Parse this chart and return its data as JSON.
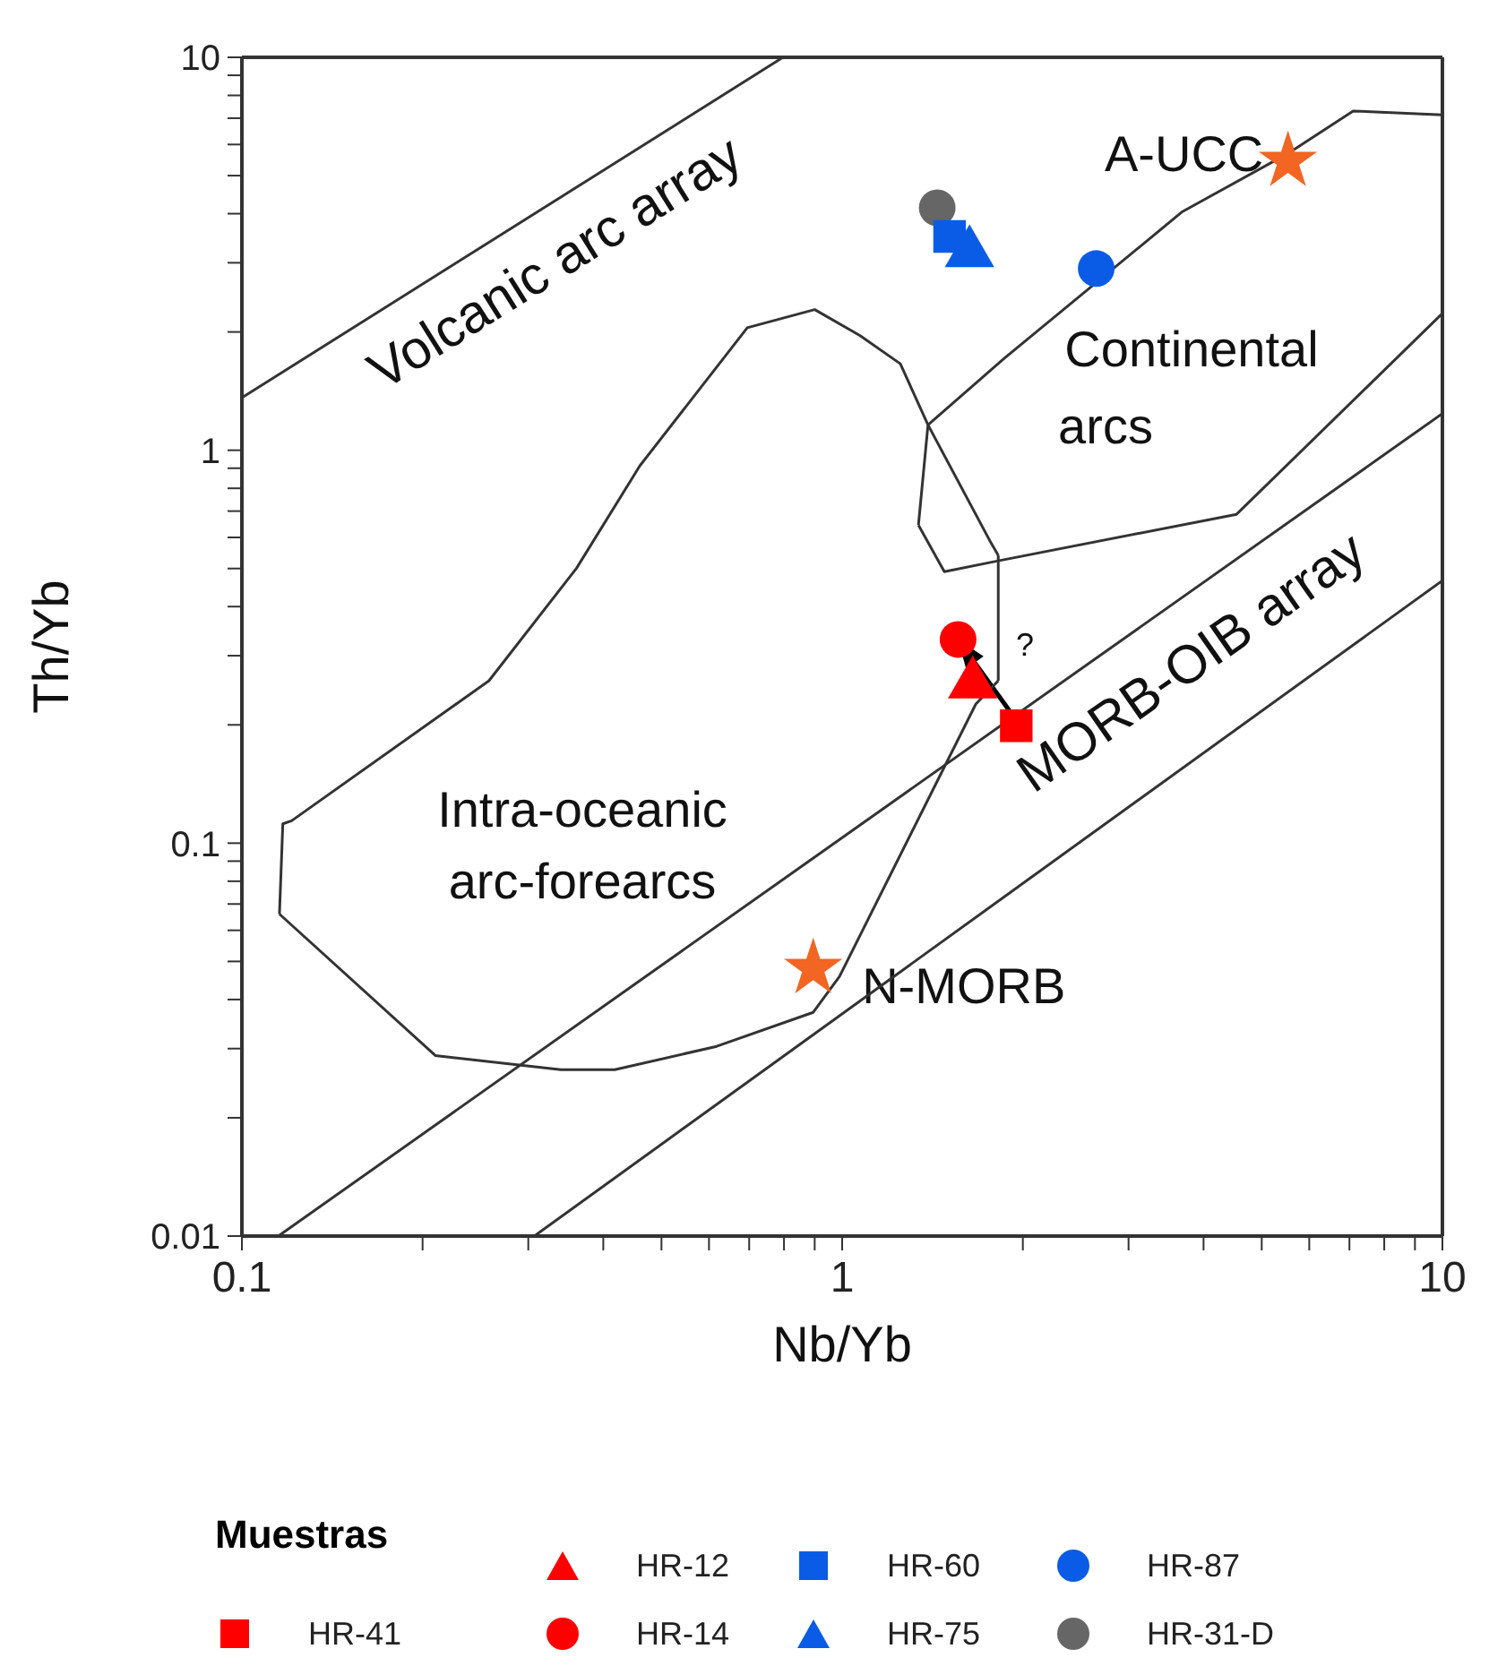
{
  "chart_data": {
    "type": "scatter",
    "xlabel": "Nb/Yb",
    "ylabel": "Th/Yb",
    "legend_title": "Muestras",
    "legend": "bottom",
    "log": "xy",
    "xlim": [
      0.1,
      10
    ],
    "ylim": [
      0.01,
      10
    ],
    "xticks": [
      0.1,
      {
        "value": 0.2,
        "label": null
      },
      {
        "value": 0.3,
        "label": null
      },
      {
        "value": 0.4,
        "label": null
      },
      {
        "value": 0.5,
        "label": null
      },
      {
        "value": 0.6,
        "label": null
      },
      {
        "value": 0.7,
        "label": null
      },
      {
        "value": 0.8,
        "label": null
      },
      {
        "value": 0.9,
        "label": null
      },
      1,
      {
        "value": 2,
        "label": null
      },
      {
        "value": 3,
        "label": null
      },
      {
        "value": 4,
        "label": null
      },
      {
        "value": 5,
        "label": null
      },
      {
        "value": 6,
        "label": null
      },
      {
        "value": 7,
        "label": null
      },
      {
        "value": 8,
        "label": null
      },
      {
        "value": 9,
        "label": null
      },
      10
    ],
    "yticks": [
      0.01,
      {
        "value": 0.02,
        "label": null
      },
      {
        "value": 0.03,
        "label": null
      },
      {
        "value": 0.04,
        "label": null
      },
      {
        "value": 0.05,
        "label": null
      },
      {
        "value": 0.06,
        "label": null
      },
      {
        "value": 0.07,
        "label": null
      },
      {
        "value": 0.08,
        "label": null
      },
      {
        "value": 0.09,
        "label": null
      },
      0.1,
      {
        "value": 0.2,
        "label": null
      },
      {
        "value": 0.3,
        "label": null
      },
      {
        "value": 0.4,
        "label": null
      },
      {
        "value": 0.5,
        "label": null
      },
      {
        "value": 0.6,
        "label": null
      },
      {
        "value": 0.7,
        "label": null
      },
      {
        "value": 0.8,
        "label": null
      },
      {
        "value": 0.9,
        "label": null
      },
      1,
      {
        "value": 2,
        "label": null
      },
      {
        "value": 3,
        "label": null
      },
      {
        "value": 4,
        "label": null
      },
      {
        "value": 5,
        "label": null
      },
      {
        "value": 6,
        "label": null
      },
      {
        "value": 7,
        "label": null
      },
      {
        "value": 8,
        "label": null
      },
      {
        "value": 9,
        "label": null
      },
      10
    ],
    "annotations": [
      "Volcanic arc array",
      "Continental",
      "arcs",
      {
        "text": "A-UCC",
        "x": 5.53,
        "y": 5.44
      },
      "MORB-OIB array",
      "?",
      "Intra-oceanic",
      "arc-forearcs",
      {
        "text": "N-MORB",
        "x": 0.895,
        "y": 0.048
      }
    ],
    "series": [
      {
        "type": "line",
        "color": "#333333",
        "marker": "none",
        "x": [
          0.1,
          0.797
        ],
        "values": [
          1.36,
          10
        ]
      },
      {
        "type": "line",
        "color": "#333333",
        "marker": "none",
        "x": [
          0.115,
          10
        ],
        "values": [
          0.01,
          1.24
        ]
      },
      {
        "type": "line",
        "color": "#333333",
        "marker": "none",
        "x": [
          0.307,
          10
        ],
        "values": [
          0.01,
          0.466
        ]
      },
      {
        "type": "line",
        "color": "#333333",
        "marker": "none",
        "x": [
          0.1155,
          0.117,
          0.121,
          0.258,
          0.361,
          0.46,
          0.695,
          0.9,
          1.07,
          1.25,
          1.39,
          1.77,
          1.82
        ],
        "values": [
          0.066,
          0.112,
          0.114,
          0.259,
          0.501,
          0.912,
          2.05,
          2.28,
          1.96,
          1.66,
          1.16,
          0.581,
          0.54
        ]
      },
      {
        "type": "line",
        "color": "#333333",
        "marker": "none",
        "x": [
          1.82,
          1.82
        ],
        "values": [
          0.54,
          0.259
        ]
      },
      {
        "type": "line",
        "color": "#333333",
        "marker": "none",
        "x": [
          0.1155,
          0.21,
          0.34,
          0.418,
          0.618,
          0.895,
          0.99,
          1.67,
          1.82
        ],
        "values": [
          0.066,
          0.0288,
          0.0265,
          0.0265,
          0.0304,
          0.0371,
          0.0458,
          0.226,
          0.259
        ]
      },
      {
        "type": "line",
        "color": "#333333",
        "marker": "none",
        "x": [
          1.34,
          1.48,
          1.82,
          4.54,
          10
        ],
        "values": [
          0.645,
          0.491,
          0.523,
          0.687,
          2.23
        ]
      },
      {
        "type": "line",
        "color": "#333333",
        "marker": "none",
        "x": [
          1.34,
          1.39,
          1.86,
          3.69,
          5.57,
          7.1,
          10
        ],
        "values": [
          0.645,
          1.16,
          1.71,
          4.05,
          5.73,
          7.3,
          7.14
        ]
      },
      {
        "type": "scatter",
        "color": "#f26522",
        "marker": "star",
        "x": [
          5.53,
          0.895
        ],
        "values": [
          5.44,
          0.048
        ]
      },
      {
        "name": "HR-41",
        "color": "#ff0000",
        "marker": "square",
        "x": [
          1.95
        ],
        "values": [
          0.199
        ]
      },
      {
        "name": "HR-12",
        "color": "#ff0000",
        "marker": "triangle",
        "x": [
          1.65
        ],
        "values": [
          0.254
        ]
      },
      {
        "name": "HR-14",
        "color": "#ff0000",
        "marker": "circle",
        "x": [
          1.56
        ],
        "values": [
          0.33
        ]
      },
      {
        "name": "HR-31-D",
        "color": "#666666",
        "marker": "circle",
        "x": [
          1.44
        ],
        "values": [
          4.14
        ]
      },
      {
        "name": "HR-60",
        "color": "#0a5ce6",
        "marker": "square",
        "x": [
          1.51
        ],
        "values": [
          3.5
        ]
      },
      {
        "name": "HR-75",
        "color": "#0a5ce6",
        "marker": "triangle",
        "x": [
          1.63
        ],
        "values": [
          3.18
        ]
      },
      {
        "name": "HR-87",
        "color": "#0a5ce6",
        "marker": "circle",
        "x": [
          2.65
        ],
        "values": [
          2.9
        ]
      }
    ]
  }
}
